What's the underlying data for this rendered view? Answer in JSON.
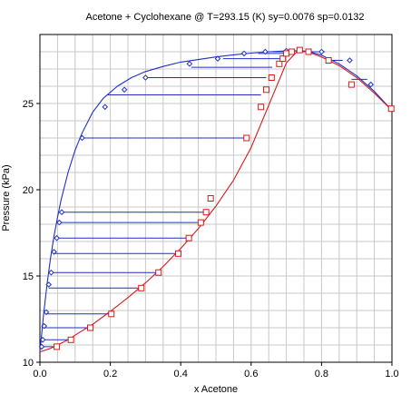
{
  "chart_data": {
    "type": "scatter",
    "title": "Acetone + Cyclohexane @ T=293.15 (K) sy=0.0076 sp=0.0132",
    "xlabel": "x Acetone",
    "ylabel": "Pressure (kPa)",
    "xlim": [
      0,
      1
    ],
    "ylim": [
      10,
      29
    ],
    "xticks": [
      0.0,
      0.2,
      0.4,
      0.6,
      0.8,
      1.0
    ],
    "xtick_labels": [
      "0.0",
      "0.2",
      "0.4",
      "0.6",
      "0.8",
      "1.0"
    ],
    "yticks": [
      10,
      15,
      20,
      25
    ],
    "ytick_labels": [
      "10",
      "15",
      "20",
      "25"
    ],
    "grid": true,
    "colors": {
      "vapor": "#1f2fc8",
      "liquid": "#d81818",
      "tie": "#1f2fc8"
    },
    "series": [
      {
        "marker": "diamond",
        "role": "vapor-data",
        "x": [
          0.005,
          0.008,
          0.012,
          0.018,
          0.025,
          0.032,
          0.04,
          0.048,
          0.055,
          0.062,
          0.12,
          0.185,
          0.24,
          0.3,
          0.425,
          0.505,
          0.58,
          0.64,
          0.7,
          0.8,
          0.88,
          0.94,
          0.998
        ],
        "y": [
          10.9,
          11.3,
          12.1,
          12.9,
          14.5,
          15.2,
          16.4,
          17.2,
          18.1,
          18.7,
          23.0,
          24.8,
          25.8,
          26.5,
          27.3,
          27.6,
          27.9,
          28.0,
          28.05,
          28.0,
          27.5,
          26.1,
          24.7
        ]
      },
      {
        "marker": "square",
        "role": "liquid-data",
        "x": [
          0.048,
          0.088,
          0.143,
          0.203,
          0.288,
          0.337,
          0.393,
          0.423,
          0.457,
          0.472,
          0.485,
          0.587,
          0.628,
          0.643,
          0.658,
          0.68,
          0.69,
          0.7,
          0.715,
          0.738,
          0.763,
          0.82,
          0.885,
          0.998
        ],
        "y": [
          10.9,
          11.3,
          12.0,
          12.8,
          14.3,
          15.2,
          16.3,
          17.2,
          18.1,
          18.7,
          19.5,
          23.0,
          24.8,
          25.8,
          26.5,
          27.3,
          27.6,
          27.9,
          28.0,
          28.1,
          28.0,
          27.5,
          26.1,
          24.7
        ]
      },
      {
        "line": "solid",
        "role": "vapor-curve",
        "x": [
          0.0,
          0.005,
          0.01,
          0.02,
          0.03,
          0.04,
          0.05,
          0.06,
          0.08,
          0.1,
          0.12,
          0.15,
          0.18,
          0.22,
          0.26,
          0.3,
          0.35,
          0.4,
          0.45,
          0.5,
          0.55,
          0.6,
          0.65,
          0.7,
          0.73,
          0.76,
          0.8,
          0.85,
          0.9,
          0.95,
          1.0
        ],
        "y": [
          10.6,
          11.6,
          12.7,
          14.5,
          16.0,
          17.3,
          18.4,
          19.4,
          21.0,
          22.3,
          23.3,
          24.5,
          25.3,
          26.0,
          26.5,
          26.85,
          27.15,
          27.4,
          27.55,
          27.7,
          27.82,
          27.92,
          28.0,
          28.05,
          28.06,
          28.03,
          27.8,
          27.3,
          26.6,
          25.7,
          24.6
        ]
      },
      {
        "line": "solid",
        "role": "liquid-curve",
        "x": [
          0.0,
          0.03,
          0.05,
          0.08,
          0.11,
          0.15,
          0.2,
          0.25,
          0.3,
          0.35,
          0.4,
          0.45,
          0.5,
          0.55,
          0.6,
          0.65,
          0.7,
          0.73,
          0.76,
          0.8,
          0.85,
          0.9,
          0.95,
          1.0
        ],
        "y": [
          10.6,
          10.8,
          11.0,
          11.3,
          11.7,
          12.2,
          12.95,
          13.75,
          14.6,
          15.55,
          16.6,
          17.75,
          19.05,
          20.55,
          22.45,
          24.9,
          27.35,
          28.0,
          28.0,
          27.7,
          27.2,
          26.5,
          25.6,
          24.6
        ]
      }
    ],
    "tie_lines": [
      {
        "y": 10.9,
        "x1": 0.005,
        "x2": 0.048
      },
      {
        "y": 11.3,
        "x1": 0.008,
        "x2": 0.088
      },
      {
        "y": 12.0,
        "x1": 0.012,
        "x2": 0.143
      },
      {
        "y": 12.8,
        "x1": 0.018,
        "x2": 0.203
      },
      {
        "y": 14.3,
        "x1": 0.025,
        "x2": 0.288
      },
      {
        "y": 15.2,
        "x1": 0.032,
        "x2": 0.337
      },
      {
        "y": 16.3,
        "x1": 0.04,
        "x2": 0.393
      },
      {
        "y": 17.2,
        "x1": 0.048,
        "x2": 0.423
      },
      {
        "y": 18.1,
        "x1": 0.055,
        "x2": 0.457
      },
      {
        "y": 18.7,
        "x1": 0.062,
        "x2": 0.472
      },
      {
        "y": 23.0,
        "x1": 0.12,
        "x2": 0.587
      },
      {
        "y": 25.5,
        "x1": 0.19,
        "x2": 0.628
      },
      {
        "y": 26.5,
        "x1": 0.3,
        "x2": 0.643
      },
      {
        "y": 27.1,
        "x1": 0.43,
        "x2": 0.66
      },
      {
        "y": 27.6,
        "x1": 0.52,
        "x2": 0.685
      },
      {
        "y": 27.9,
        "x1": 0.62,
        "x2": 0.7
      },
      {
        "y": 28.0,
        "x1": 0.66,
        "x2": 0.715
      },
      {
        "y": 28.0,
        "x1": 0.81,
        "x2": 0.763
      },
      {
        "y": 27.5,
        "x1": 0.86,
        "x2": 0.82
      },
      {
        "y": 26.4,
        "x1": 0.93,
        "x2": 0.885
      }
    ]
  }
}
